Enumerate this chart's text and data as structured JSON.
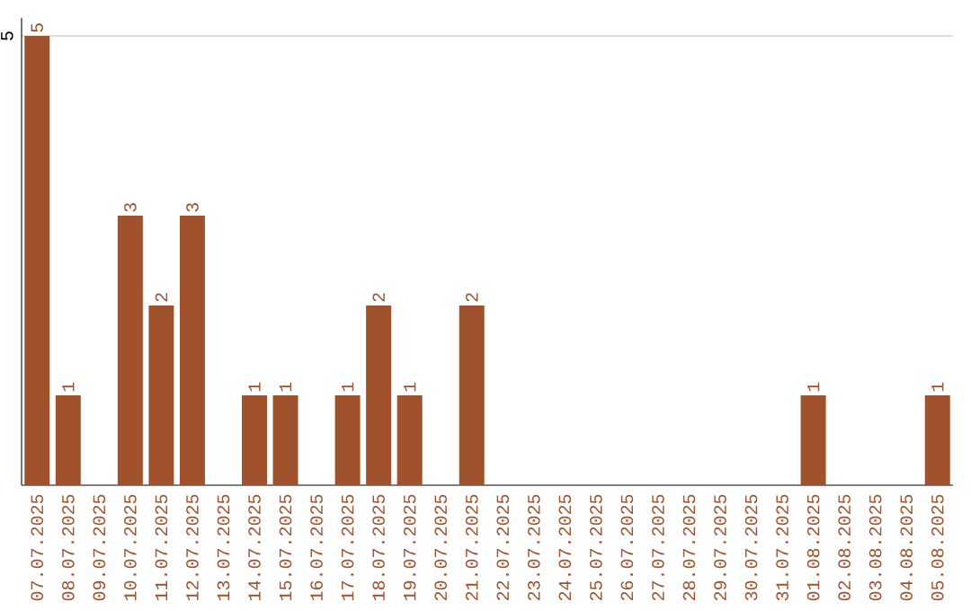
{
  "chart_data": {
    "type": "bar",
    "categories": [
      "07.07.2025",
      "08.07.2025",
      "09.07.2025",
      "10.07.2025",
      "11.07.2025",
      "12.07.2025",
      "13.07.2025",
      "14.07.2025",
      "15.07.2025",
      "16.07.2025",
      "17.07.2025",
      "18.07.2025",
      "19.07.2025",
      "20.07.2025",
      "21.07.2025",
      "22.07.2025",
      "23.07.2025",
      "24.07.2025",
      "25.07.2025",
      "26.07.2025",
      "27.07.2025",
      "28.07.2025",
      "29.07.2025",
      "30.07.2025",
      "31.07.2025",
      "01.08.2025",
      "02.08.2025",
      "03.08.2025",
      "04.08.2025",
      "05.08.2025"
    ],
    "values": [
      5,
      1,
      0,
      3,
      2,
      3,
      0,
      1,
      1,
      0,
      1,
      2,
      1,
      0,
      2,
      0,
      0,
      0,
      0,
      0,
      0,
      0,
      0,
      0,
      0,
      1,
      0,
      0,
      0,
      1
    ],
    "value_labels": [
      "5",
      "1",
      null,
      "3",
      "2",
      "3",
      null,
      "1",
      "1",
      null,
      "1",
      "2",
      "1",
      null,
      "2",
      null,
      null,
      null,
      null,
      null,
      null,
      null,
      null,
      null,
      null,
      "1",
      null,
      null,
      null,
      "1"
    ],
    "color": "#a0522d",
    "ylim": [
      0,
      5.2
    ],
    "yticks": [
      5
    ],
    "grid": "y"
  }
}
